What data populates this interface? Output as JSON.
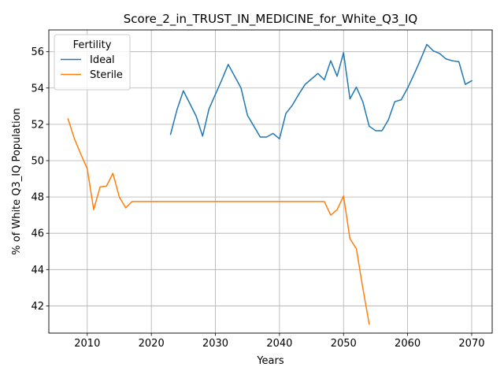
{
  "chart_data": {
    "type": "line",
    "title": "Score_2_in_TRUST_IN_MEDICINE_for_White_Q3_IQ",
    "xlabel": "Years",
    "ylabel": "% of White Q3_IQ Population",
    "xlim": [
      2004.0,
      2073.2
    ],
    "ylim": [
      40.5,
      57.2
    ],
    "xticks": [
      2010,
      2020,
      2030,
      2040,
      2050,
      2060,
      2070
    ],
    "yticks": [
      42,
      44,
      46,
      48,
      50,
      52,
      54,
      56
    ],
    "grid": true,
    "legend": {
      "title": "Fertility",
      "position": "upper-left"
    },
    "series": [
      {
        "name": "Ideal",
        "color": "#1f77b4",
        "x": [
          2023,
          2024,
          2025,
          2026,
          2027,
          2028,
          2029,
          2030,
          2031,
          2032,
          2033,
          2034,
          2035,
          2036,
          2037,
          2038,
          2039,
          2040,
          2041,
          2042,
          2043,
          2044,
          2045,
          2046,
          2047,
          2048,
          2049,
          2050,
          2051,
          2052,
          2053,
          2054,
          2055,
          2056,
          2057,
          2058,
          2059,
          2060,
          2061,
          2062,
          2063,
          2064,
          2065,
          2066,
          2067,
          2068,
          2069,
          2070
        ],
        "y": [
          51.45,
          52.8,
          53.85,
          53.15,
          52.45,
          51.35,
          52.85,
          53.65,
          54.45,
          55.3,
          54.65,
          54.0,
          52.5,
          51.9,
          51.3,
          51.3,
          51.5,
          51.2,
          52.6,
          53.05,
          53.65,
          54.2,
          54.5,
          54.8,
          54.45,
          55.5,
          54.65,
          55.95,
          53.4,
          54.05,
          53.25,
          51.9,
          51.65,
          51.65,
          52.25,
          53.25,
          53.35,
          54.0,
          54.75,
          55.55,
          56.4,
          56.05,
          55.9,
          55.6,
          55.5,
          55.45,
          54.2,
          54.4
        ]
      },
      {
        "name": "Sterile",
        "color": "#ff7f0e",
        "x": [
          2007,
          2008,
          2009,
          2010,
          2011,
          2012,
          2013,
          2014,
          2015,
          2016,
          2017,
          2018,
          2019,
          2020,
          2021,
          2022,
          2023,
          2024,
          2025,
          2026,
          2027,
          2028,
          2029,
          2030,
          2031,
          2032,
          2033,
          2034,
          2035,
          2036,
          2037,
          2038,
          2039,
          2040,
          2041,
          2042,
          2043,
          2044,
          2045,
          2046,
          2047,
          2048,
          2049,
          2050,
          2051,
          2052,
          2053,
          2054
        ],
        "y": [
          52.3,
          51.2,
          50.35,
          49.55,
          47.3,
          48.55,
          48.6,
          49.3,
          48.0,
          47.4,
          47.75,
          47.75,
          47.75,
          47.75,
          47.75,
          47.75,
          47.75,
          47.75,
          47.75,
          47.75,
          47.75,
          47.75,
          47.75,
          47.75,
          47.75,
          47.75,
          47.75,
          47.75,
          47.75,
          47.75,
          47.75,
          47.75,
          47.75,
          47.75,
          47.75,
          47.75,
          47.75,
          47.75,
          47.75,
          47.75,
          47.75,
          47.0,
          47.3,
          48.05,
          45.7,
          45.15,
          43.0,
          41.0
        ]
      }
    ]
  }
}
